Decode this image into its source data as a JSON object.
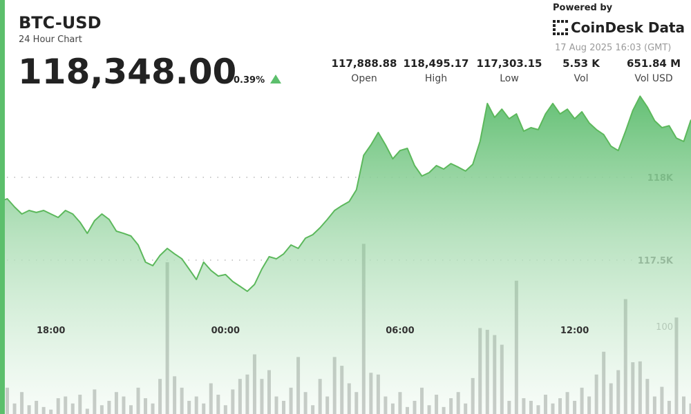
{
  "header": {
    "symbol": "BTC-USD",
    "subtitle": "24 Hour Chart",
    "price": "118,348.00",
    "change": "0.39%",
    "stats": [
      {
        "value": "117,888.88",
        "label": "Open"
      },
      {
        "value": "118,495.17",
        "label": "High"
      },
      {
        "value": "117,303.15",
        "label": "Low"
      },
      {
        "value": "5.53 K",
        "label": "Vol"
      },
      {
        "value": "651.84 M",
        "label": "Vol USD"
      }
    ],
    "powered_by": "Powered by",
    "brand": "CoinDesk Data",
    "timestamp": "17 Aug 2025 16:03 (GMT)"
  },
  "chart_data": {
    "type": "line",
    "x": [
      16.25,
      16.5,
      16.75,
      17,
      17.25,
      17.5,
      17.75,
      18,
      18.25,
      18.5,
      18.75,
      19,
      19.25,
      19.5,
      19.75,
      20,
      20.25,
      20.5,
      20.75,
      21,
      21.25,
      21.5,
      21.75,
      22,
      22.25,
      22.5,
      22.75,
      23,
      23.25,
      23.5,
      23.75,
      24,
      24.25,
      24.5,
      24.75,
      25,
      25.25,
      25.5,
      25.75,
      26,
      26.25,
      26.5,
      26.75,
      27,
      27.25,
      27.5,
      27.75,
      28,
      28.25,
      28.5,
      28.75,
      29,
      29.25,
      29.5,
      29.75,
      30,
      30.25,
      30.5,
      30.75,
      31,
      31.25,
      31.5,
      31.75,
      32,
      32.25,
      32.5,
      32.75,
      33,
      33.25,
      33.5,
      33.75,
      34,
      34.25,
      34.5,
      34.75,
      35,
      35.25,
      35.5,
      35.75,
      36,
      36.25,
      36.5,
      36.75,
      37,
      37.25,
      37.5,
      37.75,
      38,
      38.25,
      38.5,
      38.75,
      39,
      39.25,
      39.5,
      39.75,
      40
    ],
    "series": [
      {
        "color": "#5cb85c",
        "values": [
          117854,
          117871,
          117821,
          117779,
          117800,
          117788,
          117800,
          117779,
          117758,
          117800,
          117779,
          117729,
          117662,
          117738,
          117779,
          117746,
          117675,
          117662,
          117646,
          117592,
          117488,
          117467,
          117529,
          117571,
          117538,
          117508,
          117446,
          117383,
          117488,
          117438,
          117404,
          117413,
          117371,
          117342,
          117312,
          117354,
          117446,
          117521,
          117508,
          117538,
          117592,
          117571,
          117633,
          117654,
          117696,
          117746,
          117800,
          117829,
          117854,
          117925,
          118133,
          118196,
          118271,
          118196,
          118112,
          118162,
          118175,
          118071,
          118008,
          118029,
          118071,
          118050,
          118083,
          118062,
          118038,
          118079,
          118217,
          118446,
          118362,
          118412,
          118354,
          118383,
          118279,
          118300,
          118288,
          118383,
          118446,
          118383,
          118412,
          118354,
          118396,
          118329,
          118288,
          118258,
          118188,
          118162,
          118279,
          118404,
          118490,
          118425,
          118342,
          118300,
          118312,
          118237,
          118217,
          118348
        ]
      },
      {
        "type": "bar",
        "axis": "y2",
        "color": "#6f6f6f",
        "values": [
          20,
          30,
          12,
          25,
          10,
          15,
          8,
          5,
          18,
          20,
          12,
          22,
          6,
          28,
          10,
          15,
          25,
          20,
          10,
          30,
          18,
          12,
          40,
          173,
          43,
          30,
          15,
          20,
          12,
          35,
          22,
          10,
          28,
          40,
          45,
          68,
          40,
          50,
          20,
          15,
          30,
          65,
          25,
          10,
          40,
          20,
          65,
          55,
          35,
          25,
          194,
          47,
          45,
          20,
          12,
          25,
          8,
          15,
          30,
          10,
          22,
          8,
          18,
          25,
          12,
          41,
          98,
          96,
          90,
          79,
          15,
          152,
          18,
          15,
          10,
          22,
          12,
          18,
          25,
          15,
          30,
          20,
          45,
          71,
          35,
          50,
          131,
          59,
          60,
          40,
          20,
          31,
          15,
          110,
          20,
          12
        ]
      }
    ],
    "xlim": [
      16.25,
      40
    ],
    "xticks": [
      {
        "value": 18,
        "label": "18:00"
      },
      {
        "value": 24,
        "label": "00:00"
      },
      {
        "value": 30,
        "label": "06:00"
      },
      {
        "value": 36,
        "label": "12:00"
      }
    ],
    "ylim": [
      116571,
      119071
    ],
    "yticks": [
      {
        "value": 117500,
        "label": "117.5K"
      },
      {
        "value": 118000,
        "label": "118K"
      }
    ],
    "y2lim": [
      0,
      472
    ],
    "y2ticks": [
      100
    ],
    "grid": true
  }
}
